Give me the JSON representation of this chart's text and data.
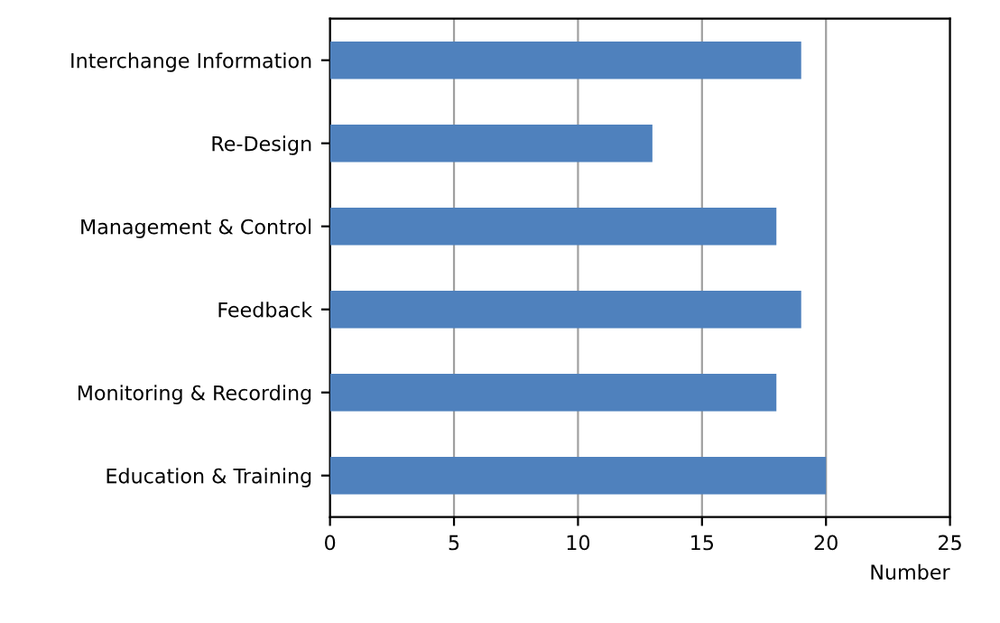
{
  "chart_data": {
    "type": "bar",
    "orientation": "horizontal",
    "xlabel": "Number",
    "categories": [
      "Interchange Information",
      "Re-Design",
      "Management & Control",
      "Feedback",
      "Monitoring & Recording",
      "Education & Training"
    ],
    "values": [
      19,
      13,
      18,
      19,
      18,
      20
    ],
    "color": "#4f81bd",
    "xlim": [
      0,
      25
    ],
    "xticks": [
      0,
      5,
      10,
      15,
      20,
      25
    ],
    "grid": "x"
  }
}
